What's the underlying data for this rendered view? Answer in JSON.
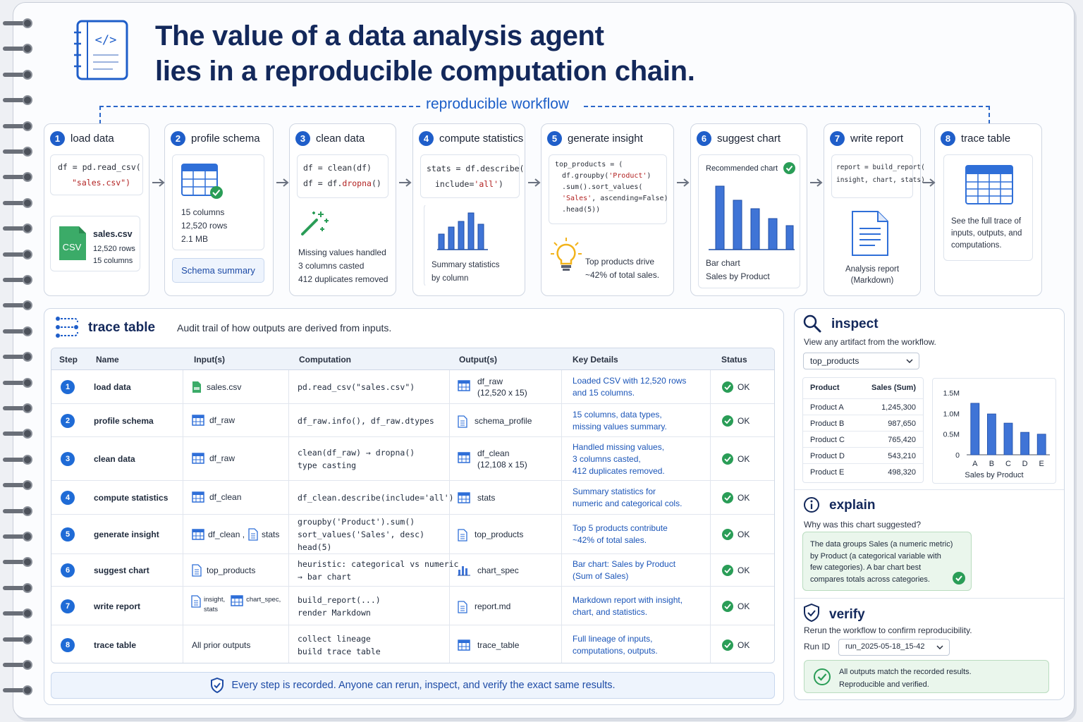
{
  "title": {
    "line1": "The value of a data analysis agent",
    "line2": "lies in a reproducible computation chain."
  },
  "workflow_label": "reproducible workflow",
  "steps": [
    {
      "num": "1",
      "name": "load data",
      "code1": "df = pd.read_csv(",
      "code2": "\"sales.csv\")",
      "file_name": "sales.csv",
      "file_rows": "12,520 rows",
      "file_cols": "15 columns",
      "file_badge": "CSV"
    },
    {
      "num": "2",
      "name": "profile schema",
      "l1": "15 columns",
      "l2": "12,520 rows",
      "l3": "2.1 MB",
      "button": "Schema summary"
    },
    {
      "num": "3",
      "name": "clean data",
      "code1": "df = clean(df)",
      "code2a": "df = df.",
      "code2b": "dropna",
      "code2c": "()",
      "l1": "Missing values handled",
      "l2": "3 columns casted",
      "l3": "412 duplicates removed"
    },
    {
      "num": "4",
      "name": "compute statistics",
      "code1": "stats = df.describe(",
      "code2a": "include=",
      "code2b": "'all'",
      "code2c": ")",
      "l1": "Summary statistics",
      "l2": "by column"
    },
    {
      "num": "5",
      "name": "generate insight",
      "code1": "top_products = (",
      "code2a": "df.groupby(",
      "code2b": "'Product'",
      "code2c": ")",
      "code3": ".sum().sort_values(",
      "code4a": "'Sales'",
      "code4b": ", ascending=False)",
      "code5": ".head(5))",
      "l1": "Top products drive",
      "l2": "~42% of total sales."
    },
    {
      "num": "6",
      "name": "suggest chart",
      "rec": "Recommended chart",
      "l1": "Bar chart",
      "l2": "Sales by Product"
    },
    {
      "num": "7",
      "name": "write report",
      "code1": "report = build_report(",
      "code2": "insight, chart, stats)",
      "l1": "Analysis report",
      "l2": "(Markdown)"
    },
    {
      "num": "8",
      "name": "trace table",
      "l1": "See the full trace of",
      "l2": "inputs, outputs, and",
      "l3": "computations."
    }
  ],
  "trace": {
    "title": "trace table",
    "subtitle": "Audit trail of how outputs are derived from inputs.",
    "headers": [
      "Step",
      "Name",
      "Input(s)",
      "Computation",
      "Output(s)",
      "Key Details",
      "Status"
    ],
    "rows": [
      {
        "step": "1",
        "name": "load data",
        "in1": "sales.csv",
        "in2": "",
        "in3": "",
        "comp1": "pd.read_csv(\"sales.csv\")",
        "comp2": "",
        "out1": "df_raw",
        "out2": "(12,520 x 15)",
        "d1": "Loaded CSV with 12,520 rows",
        "d2": "and 15 columns.",
        "d3": "",
        "status": "OK"
      },
      {
        "step": "2",
        "name": "profile schema",
        "in1": "df_raw",
        "in2": "",
        "in3": "",
        "comp1": "df_raw.info(), df_raw.dtypes",
        "comp2": "",
        "out1": "schema_profile",
        "out2": "",
        "d1": "15 columns, data types,",
        "d2": "missing values summary.",
        "d3": "",
        "status": "OK"
      },
      {
        "step": "3",
        "name": "clean data",
        "in1": "df_raw",
        "in2": "",
        "in3": "",
        "comp1": "clean(df_raw) → dropna()",
        "comp2": "type casting",
        "out1": "df_clean",
        "out2": "(12,108 x 15)",
        "d1": "Handled missing values,",
        "d2": "3 columns casted,",
        "d3": "412 duplicates removed.",
        "status": "OK"
      },
      {
        "step": "4",
        "name": "compute statistics",
        "in1": "df_clean",
        "in2": "",
        "in3": "",
        "comp1": "df_clean.describe(include='all')",
        "comp2": "",
        "out1": "stats",
        "out2": "",
        "d1": "Summary statistics for",
        "d2": "numeric and categorical cols.",
        "d3": "",
        "status": "OK"
      },
      {
        "step": "5",
        "name": "generate insight",
        "in1": "df_clean ,",
        "in2": "stats",
        "in3": "",
        "comp1": "groupby('Product').sum()",
        "comp2": "sort_values('Sales', desc)",
        "comp3": "head(5)",
        "out1": "top_products",
        "out2": "",
        "d1": "Top 5 products contribute",
        "d2": "~42% of total sales.",
        "d3": "",
        "status": "OK"
      },
      {
        "step": "6",
        "name": "suggest chart",
        "in1": "top_products",
        "in2": "",
        "in3": "",
        "comp1": "heuristic: categorical vs numeric",
        "comp2": "→ bar chart",
        "out1": "chart_spec",
        "out2": "",
        "d1": "Bar chart: Sales by Product",
        "d2": "(Sum of Sales)",
        "d3": "",
        "status": "OK"
      },
      {
        "step": "7",
        "name": "write report",
        "in1": "insight,",
        "in2": "chart_spec,",
        "in3": "stats",
        "comp1": "build_report(...)",
        "comp2": "render Markdown",
        "out1": "report.md",
        "out2": "",
        "d1": "Markdown report with insight,",
        "d2": "chart, and statistics.",
        "d3": "",
        "status": "OK"
      },
      {
        "step": "8",
        "name": "trace table",
        "in1": "All prior outputs",
        "in2": "",
        "in3": "",
        "comp1": "collect lineage",
        "comp2": "build trace table",
        "out1": "trace_table",
        "out2": "",
        "d1": "Full lineage of inputs,",
        "d2": "computations, outputs.",
        "d3": "",
        "status": "OK"
      }
    ],
    "banner": "Every step is recorded. Anyone can rerun, inspect, and verify the exact same results."
  },
  "inspect": {
    "title": "inspect",
    "subtitle": "View any artifact from the workflow.",
    "select": "top_products",
    "col1": "Product",
    "col2": "Sales (Sum)",
    "rows": [
      {
        "p": "Product A",
        "v": "1,245,300"
      },
      {
        "p": "Product B",
        "v": "987,650"
      },
      {
        "p": "Product C",
        "v": "765,420"
      },
      {
        "p": "Product D",
        "v": "543,210"
      },
      {
        "p": "Product E",
        "v": "498,320"
      }
    ],
    "chart_title": "Sales by Product"
  },
  "chart_data": {
    "type": "bar",
    "categories": [
      "A",
      "B",
      "C",
      "D",
      "E"
    ],
    "values": [
      1245300,
      987650,
      765420,
      543210,
      498320
    ],
    "title": "Sales by Product",
    "yticks": [
      "1.5M",
      "1.0M",
      "0.5M",
      "0"
    ],
    "ylim": [
      0,
      1500000
    ]
  },
  "explain": {
    "title": "explain",
    "question": "Why was this chart suggested?",
    "l1": "The data groups Sales (a numeric metric)",
    "l2": "by Product (a categorical variable with",
    "l3": "few categories). A bar chart best",
    "l4": "compares totals across categories."
  },
  "verify": {
    "title": "verify",
    "subtitle": "Rerun the workflow to confirm reproducibility.",
    "run_label": "Run ID",
    "run_id": "run_2025-05-18_15-42",
    "l1": "All outputs match the recorded results.",
    "l2": "Reproducible and verified."
  },
  "colors": {
    "accent": "#1f5ec9",
    "navy": "#13285b",
    "ok_green": "#2a9d57",
    "bar_blue": "#3f74d6"
  }
}
